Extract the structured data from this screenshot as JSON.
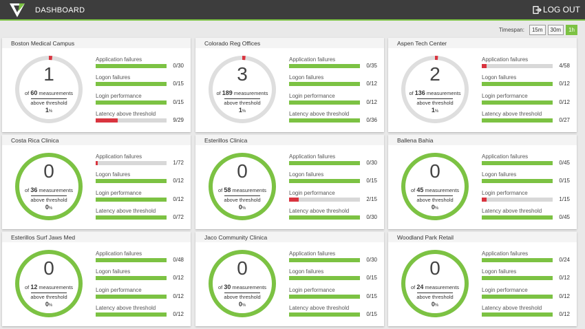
{
  "header": {
    "title": "DASHBOARD",
    "logout_label": "LOG OUT"
  },
  "timespan": {
    "label": "Timespan:",
    "options": [
      "15m",
      "30m",
      "1h"
    ],
    "selected": "1h"
  },
  "colors": {
    "accent": "#7cc243",
    "alert": "#d9343f",
    "track": "#d8d8d8",
    "ring_idle": "#dedede"
  },
  "metric_labels": [
    "Application failures",
    "Logon failures",
    "Login performance",
    "Latency above threshold"
  ],
  "cards": [
    {
      "name": "Boston Medical Campus",
      "count": "1",
      "measurements": "60",
      "measurements_label": "measurements",
      "above_label": "above threshold",
      "pct": "1",
      "pct_unit": "%",
      "metrics": [
        {
          "value": "0/30",
          "num": 0,
          "den": 30
        },
        {
          "value": "0/15",
          "num": 0,
          "den": 15
        },
        {
          "value": "0/15",
          "num": 0,
          "den": 15
        },
        {
          "value": "9/29",
          "num": 9,
          "den": 29
        }
      ]
    },
    {
      "name": "Colorado Reg Offices",
      "count": "3",
      "measurements": "189",
      "measurements_label": "measurements",
      "above_label": "above threshold",
      "pct": "1",
      "pct_unit": "%",
      "metrics": [
        {
          "value": "0/35",
          "num": 0,
          "den": 35
        },
        {
          "value": "0/12",
          "num": 0,
          "den": 12
        },
        {
          "value": "0/12",
          "num": 0,
          "den": 12
        },
        {
          "value": "0/36",
          "num": 0,
          "den": 36
        }
      ]
    },
    {
      "name": "Aspen Tech Center",
      "count": "2",
      "measurements": "136",
      "measurements_label": "measurements",
      "above_label": "above threshold",
      "pct": "1",
      "pct_unit": "%",
      "metrics": [
        {
          "value": "4/58",
          "num": 4,
          "den": 58
        },
        {
          "value": "0/12",
          "num": 0,
          "den": 12
        },
        {
          "value": "0/12",
          "num": 0,
          "den": 12
        },
        {
          "value": "0/27",
          "num": 0,
          "den": 27
        }
      ]
    },
    {
      "name": "Costa Rica Clinica",
      "count": "0",
      "measurements": "36",
      "measurements_label": "measurements",
      "above_label": "above threshold",
      "pct": "0",
      "pct_unit": "%",
      "metrics": [
        {
          "value": "1/72",
          "num": 1,
          "den": 72
        },
        {
          "value": "0/12",
          "num": 0,
          "den": 12
        },
        {
          "value": "0/12",
          "num": 0,
          "den": 12
        },
        {
          "value": "0/72",
          "num": 0,
          "den": 72
        }
      ]
    },
    {
      "name": "Esterillos Clinica",
      "count": "0",
      "measurements": "58",
      "measurements_label": "measurements",
      "above_label": "above threshold",
      "pct": "0",
      "pct_unit": "%",
      "metrics": [
        {
          "value": "0/30",
          "num": 0,
          "den": 30
        },
        {
          "value": "0/15",
          "num": 0,
          "den": 15
        },
        {
          "value": "2/15",
          "num": 2,
          "den": 15
        },
        {
          "value": "0/30",
          "num": 0,
          "den": 30
        }
      ]
    },
    {
      "name": "Ballena Bahia",
      "count": "0",
      "measurements": "45",
      "measurements_label": "measurements",
      "above_label": "above threshold",
      "pct": "0",
      "pct_unit": "%",
      "metrics": [
        {
          "value": "0/45",
          "num": 0,
          "den": 45
        },
        {
          "value": "0/15",
          "num": 0,
          "den": 15
        },
        {
          "value": "1/15",
          "num": 1,
          "den": 15
        },
        {
          "value": "0/45",
          "num": 0,
          "den": 45
        }
      ]
    },
    {
      "name": "Esterillos Surf Jaws Med",
      "count": "0",
      "measurements": "12",
      "measurements_label": "measurements",
      "above_label": "above threshold",
      "pct": "0",
      "pct_unit": "%",
      "metrics": [
        {
          "value": "0/48",
          "num": 0,
          "den": 48
        },
        {
          "value": "0/12",
          "num": 0,
          "den": 12
        },
        {
          "value": "0/12",
          "num": 0,
          "den": 12
        },
        {
          "value": "0/12",
          "num": 0,
          "den": 12
        }
      ]
    },
    {
      "name": "Jaco Community Clinica",
      "count": "0",
      "measurements": "30",
      "measurements_label": "measurements",
      "above_label": "above threshold",
      "pct": "0",
      "pct_unit": "%",
      "metrics": [
        {
          "value": "0/30",
          "num": 0,
          "den": 30
        },
        {
          "value": "0/15",
          "num": 0,
          "den": 15
        },
        {
          "value": "0/15",
          "num": 0,
          "den": 15
        },
        {
          "value": "0/15",
          "num": 0,
          "den": 15
        }
      ]
    },
    {
      "name": "Woodland Park Retail",
      "count": "0",
      "measurements": "24",
      "measurements_label": "measurements",
      "above_label": "above threshold",
      "pct": "0",
      "pct_unit": "%",
      "metrics": [
        {
          "value": "0/24",
          "num": 0,
          "den": 24
        },
        {
          "value": "0/12",
          "num": 0,
          "den": 12
        },
        {
          "value": "0/12",
          "num": 0,
          "den": 12
        },
        {
          "value": "0/12",
          "num": 0,
          "den": 12
        }
      ]
    }
  ]
}
